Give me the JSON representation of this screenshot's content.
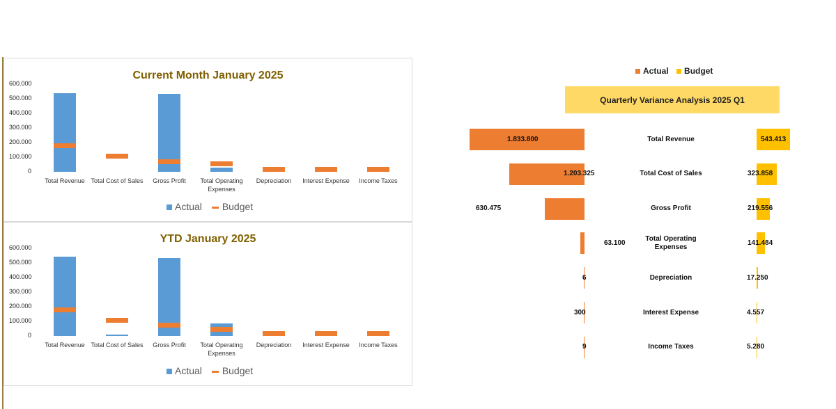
{
  "chart_data": [
    {
      "type": "bar",
      "title": "Current Month  January 2025",
      "categories": [
        "Total Revenue",
        "Total Cost of Sales",
        "Gross Profit",
        "Total Operating Expenses",
        "Depreciation",
        "Interest Expense",
        "Income Taxes"
      ],
      "series": [
        {
          "name": "Actual",
          "values": [
            540000,
            0,
            533000,
            30000,
            0,
            0,
            0
          ]
        },
        {
          "name": "Budget",
          "values": [
            181000,
            108000,
            73000,
            58000,
            0,
            0,
            0
          ]
        }
      ],
      "yticks": [
        "600.000",
        "500.000",
        "400.000",
        "300.000",
        "200.000",
        "100.000",
        "0"
      ],
      "ylim": [
        0,
        600000
      ],
      "legend": "bottom"
    },
    {
      "type": "bar",
      "title": "YTD  January 2025",
      "categories": [
        "Total Revenue",
        "Total Cost of Sales",
        "Gross Profit",
        "Total Operating Expenses",
        "Depreciation",
        "Interest Expense",
        "Income Taxes"
      ],
      "series": [
        {
          "name": "Actual",
          "values": [
            543000,
            8000,
            533000,
            85000,
            0,
            0,
            0
          ]
        },
        {
          "name": "Budget",
          "values": [
            181000,
            110000,
            74000,
            48000,
            12000,
            10000,
            10000
          ]
        }
      ],
      "yticks": [
        "600.000",
        "500.000",
        "400.000",
        "300.000",
        "200.000",
        "100.000",
        "0"
      ],
      "ylim": [
        0,
        600000
      ],
      "legend": "bottom"
    },
    {
      "type": "bar",
      "title": "Quarterly Variance Analysis  2025 Q1",
      "orientation": "horizontal-butterfly",
      "categories": [
        "Total Revenue",
        "Total Cost of Sales",
        "Gross Profit",
        "Total Operating Expenses",
        "Depreciation",
        "Interest Expense",
        "Income Taxes"
      ],
      "series": [
        {
          "name": "Actual",
          "values": [
            1833800,
            1203325,
            630475,
            63100,
            6,
            300,
            9
          ],
          "labels": [
            "1.833.800",
            "1.203.325",
            "630.475",
            "63.100",
            "6",
            "300",
            "9"
          ]
        },
        {
          "name": "Budget",
          "values": [
            543413,
            323858,
            219556,
            141484,
            17250,
            4557,
            5280
          ],
          "labels": [
            "543.413",
            "323.858",
            "219.556",
            "141.484",
            "17.250",
            "4.557",
            "5.280"
          ]
        }
      ],
      "legend": "top"
    }
  ],
  "colors": {
    "actual": "#5b9bd5",
    "budget": "#ed7d31",
    "q_actual": "#ed7d31",
    "q_budget": "#ffc000",
    "title_bg": "#ffd966",
    "title_text": "#7f6000"
  },
  "legend_labels": {
    "actual": "Actual",
    "budget": "Budget"
  }
}
